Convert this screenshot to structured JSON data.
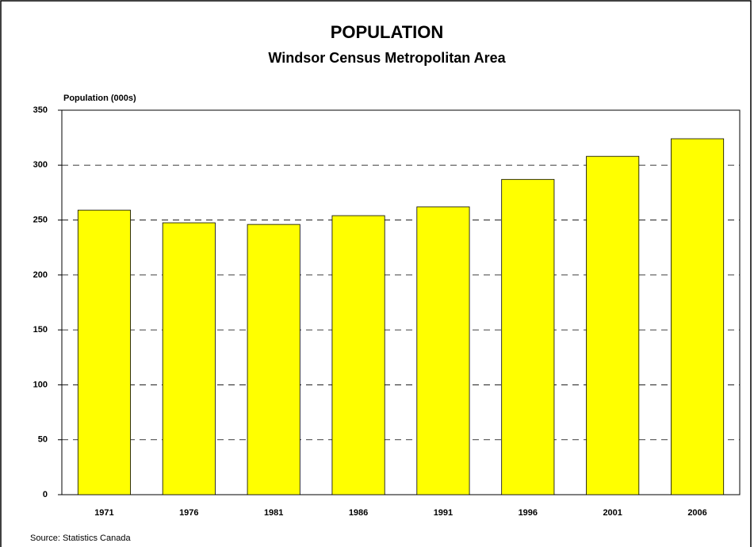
{
  "chart_data": {
    "type": "bar",
    "title": "POPULATION",
    "subtitle": "Windsor Census Metropolitan Area",
    "y_label": "Population (000s)",
    "source": "Source: Statistics Canada",
    "categories": [
      "1971",
      "1976",
      "1981",
      "1986",
      "1991",
      "1996",
      "2001",
      "2006"
    ],
    "values": [
      259,
      247.5,
      246,
      254,
      262,
      287,
      308,
      324
    ],
    "color": "#ffff00",
    "ylim": [
      0,
      350
    ],
    "yticks": [
      0,
      50,
      100,
      150,
      200,
      250,
      300,
      350
    ],
    "grid": true
  }
}
